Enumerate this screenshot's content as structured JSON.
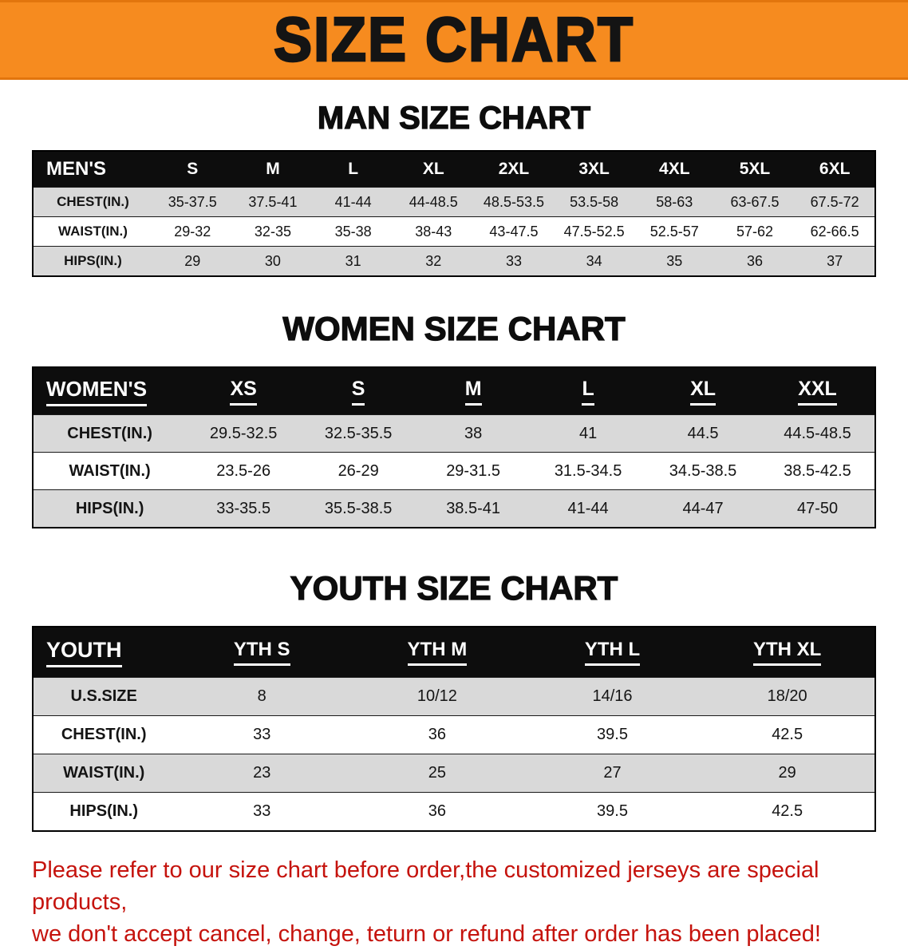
{
  "banner": {
    "title": "SIZE CHART",
    "bg_color": "#f68b1f",
    "text_color": "#141414"
  },
  "sections": [
    {
      "heading": "MAN SIZE CHART",
      "header": [
        "MEN'S",
        "S",
        "M",
        "L",
        "XL",
        "2XL",
        "3XL",
        "4XL",
        "5XL",
        "6XL"
      ],
      "rows": [
        {
          "label": "CHEST(IN.)",
          "values": [
            "35-37.5",
            "37.5-41",
            "41-44",
            "44-48.5",
            "48.5-53.5",
            "53.5-58",
            "58-63",
            "63-67.5",
            "67.5-72"
          ]
        },
        {
          "label": "WAIST(IN.)",
          "values": [
            "29-32",
            "32-35",
            "35-38",
            "38-43",
            "43-47.5",
            "47.5-52.5",
            "52.5-57",
            "57-62",
            "62-66.5"
          ]
        },
        {
          "label": "HIPS(IN.)",
          "values": [
            "29",
            "30",
            "31",
            "32",
            "33",
            "34",
            "35",
            "36",
            "37"
          ]
        }
      ]
    },
    {
      "heading": "WOMEN SIZE CHART",
      "header": [
        "WOMEN'S",
        "XS",
        "S",
        "M",
        "L",
        "XL",
        "XXL"
      ],
      "rows": [
        {
          "label": "CHEST(IN.)",
          "values": [
            "29.5-32.5",
            "32.5-35.5",
            "38",
            "41",
            "44.5",
            "44.5-48.5"
          ]
        },
        {
          "label": "WAIST(IN.)",
          "values": [
            "23.5-26",
            "26-29",
            "29-31.5",
            "31.5-34.5",
            "34.5-38.5",
            "38.5-42.5"
          ]
        },
        {
          "label": "HIPS(IN.)",
          "values": [
            "33-35.5",
            "35.5-38.5",
            "38.5-41",
            "41-44",
            "44-47",
            "47-50"
          ]
        }
      ]
    },
    {
      "heading": "YOUTH SIZE CHART",
      "header": [
        "YOUTH",
        "YTH S",
        "YTH M",
        "YTH L",
        "YTH XL"
      ],
      "rows": [
        {
          "label": "U.S.SIZE",
          "values": [
            "8",
            "10/12",
            "14/16",
            "18/20"
          ]
        },
        {
          "label": "CHEST(IN.)",
          "values": [
            "33",
            "36",
            "39.5",
            "42.5"
          ]
        },
        {
          "label": "WAIST(IN.)",
          "values": [
            "23",
            "25",
            "27",
            "29"
          ]
        },
        {
          "label": "HIPS(IN.)",
          "values": [
            "33",
            "36",
            "39.5",
            "42.5"
          ]
        }
      ]
    }
  ],
  "disclaimer": {
    "line1": "Please refer to our size chart before order,the customized jerseys are special products,",
    "line2": "we don't accept cancel, change, teturn or refund after order has been placed!",
    "color": "#c5130d"
  }
}
